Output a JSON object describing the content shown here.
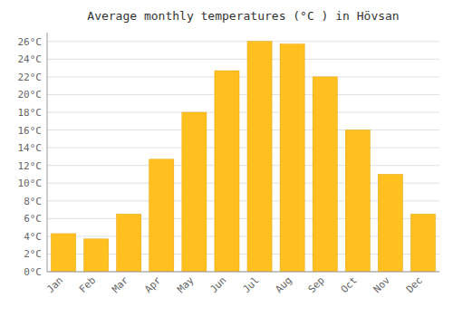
{
  "chart_data": {
    "type": "bar",
    "title": "Average monthly temperatures (°C ) in Hövsan",
    "categories": [
      "Jan",
      "Feb",
      "Mar",
      "Apr",
      "May",
      "Jun",
      "Jul",
      "Aug",
      "Sep",
      "Oct",
      "Nov",
      "Dec"
    ],
    "values": [
      4.3,
      3.7,
      6.5,
      12.7,
      18.0,
      22.7,
      26.0,
      25.7,
      22.0,
      16.0,
      11.0,
      6.5
    ],
    "color": "#FFC020",
    "ylim": [
      0,
      27
    ],
    "yticks": [
      {
        "value": 0,
        "label": "0°C"
      },
      {
        "value": 2,
        "label": "2°C"
      },
      {
        "value": 4,
        "label": "4°C"
      },
      {
        "value": 6,
        "label": "6°C"
      },
      {
        "value": 8,
        "label": "8°C"
      },
      {
        "value": 10,
        "label": "10°C"
      },
      {
        "value": 12,
        "label": "12°C"
      },
      {
        "value": 14,
        "label": "14°C"
      },
      {
        "value": 16,
        "label": "16°C"
      },
      {
        "value": 18,
        "label": "18°C"
      },
      {
        "value": 20,
        "label": "20°C"
      },
      {
        "value": 22,
        "label": "22°C"
      },
      {
        "value": 24,
        "label": "24°C"
      },
      {
        "value": 26,
        "label": "26°C"
      }
    ],
    "grid": true
  }
}
